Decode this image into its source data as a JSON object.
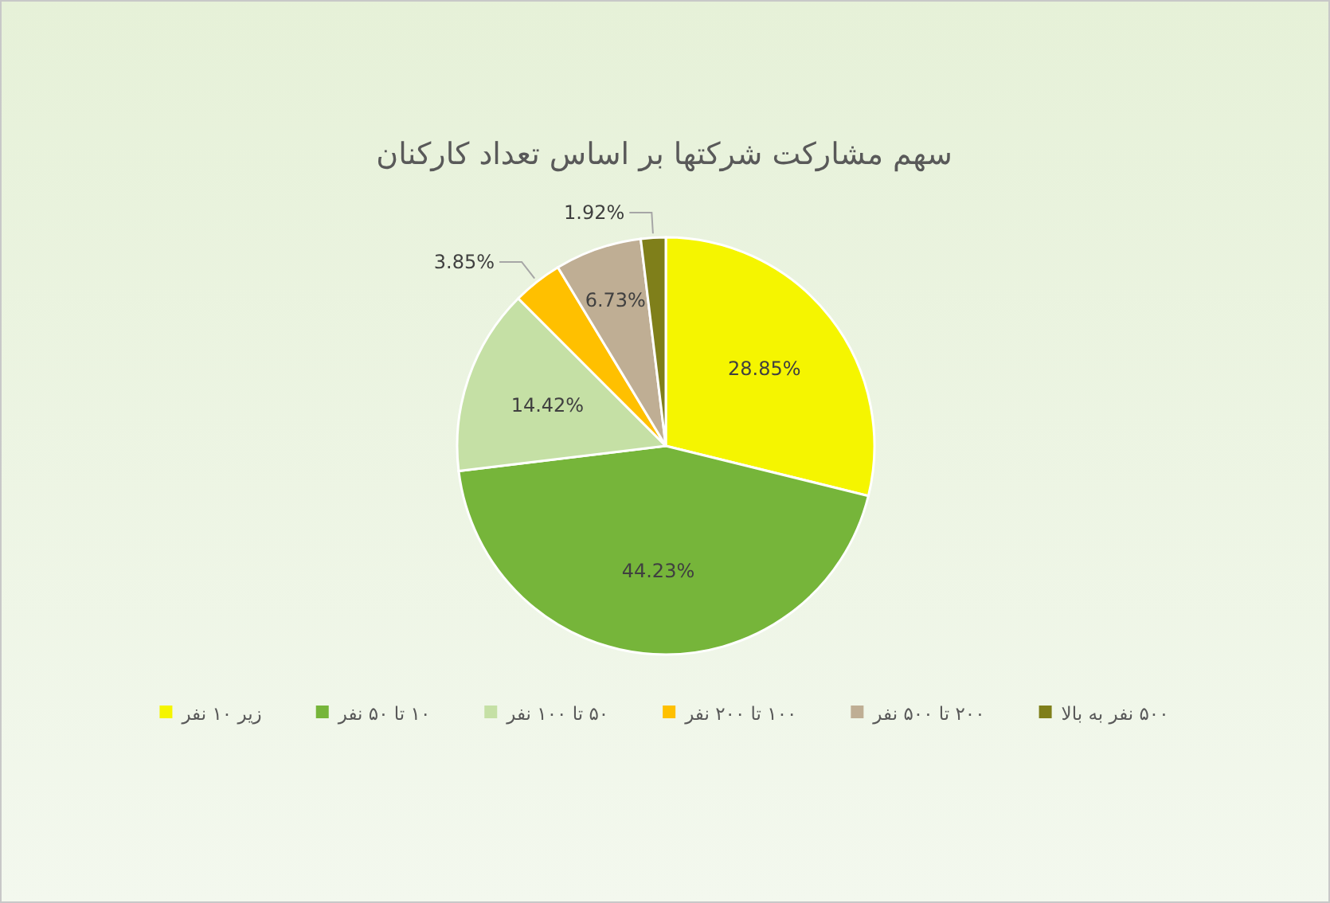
{
  "chart_data": {
    "type": "pie",
    "title": "سهم مشارکت شرکتها بر اساس تعداد کارکنان",
    "categories": [
      "زیر ۱۰ نفر",
      "۱۰ تا ۵۰ نفر",
      "۵۰ تا ۱۰۰ نفر",
      "۱۰۰ تا ۲۰۰ نفر",
      "۲۰۰ تا ۵۰۰ نفر",
      "۵۰۰ نفر به بالا"
    ],
    "values": [
      28.85,
      44.23,
      14.42,
      3.85,
      6.73,
      1.92
    ],
    "value_labels": [
      "28.85%",
      "44.23%",
      "14.42%",
      "3.85%",
      "6.73%",
      "1.92%"
    ],
    "colors": [
      "#f5f500",
      "#76b53a",
      "#c5e0a5",
      "#ffc000",
      "#bfae94",
      "#7f7f1a"
    ],
    "legend": "bottom"
  }
}
